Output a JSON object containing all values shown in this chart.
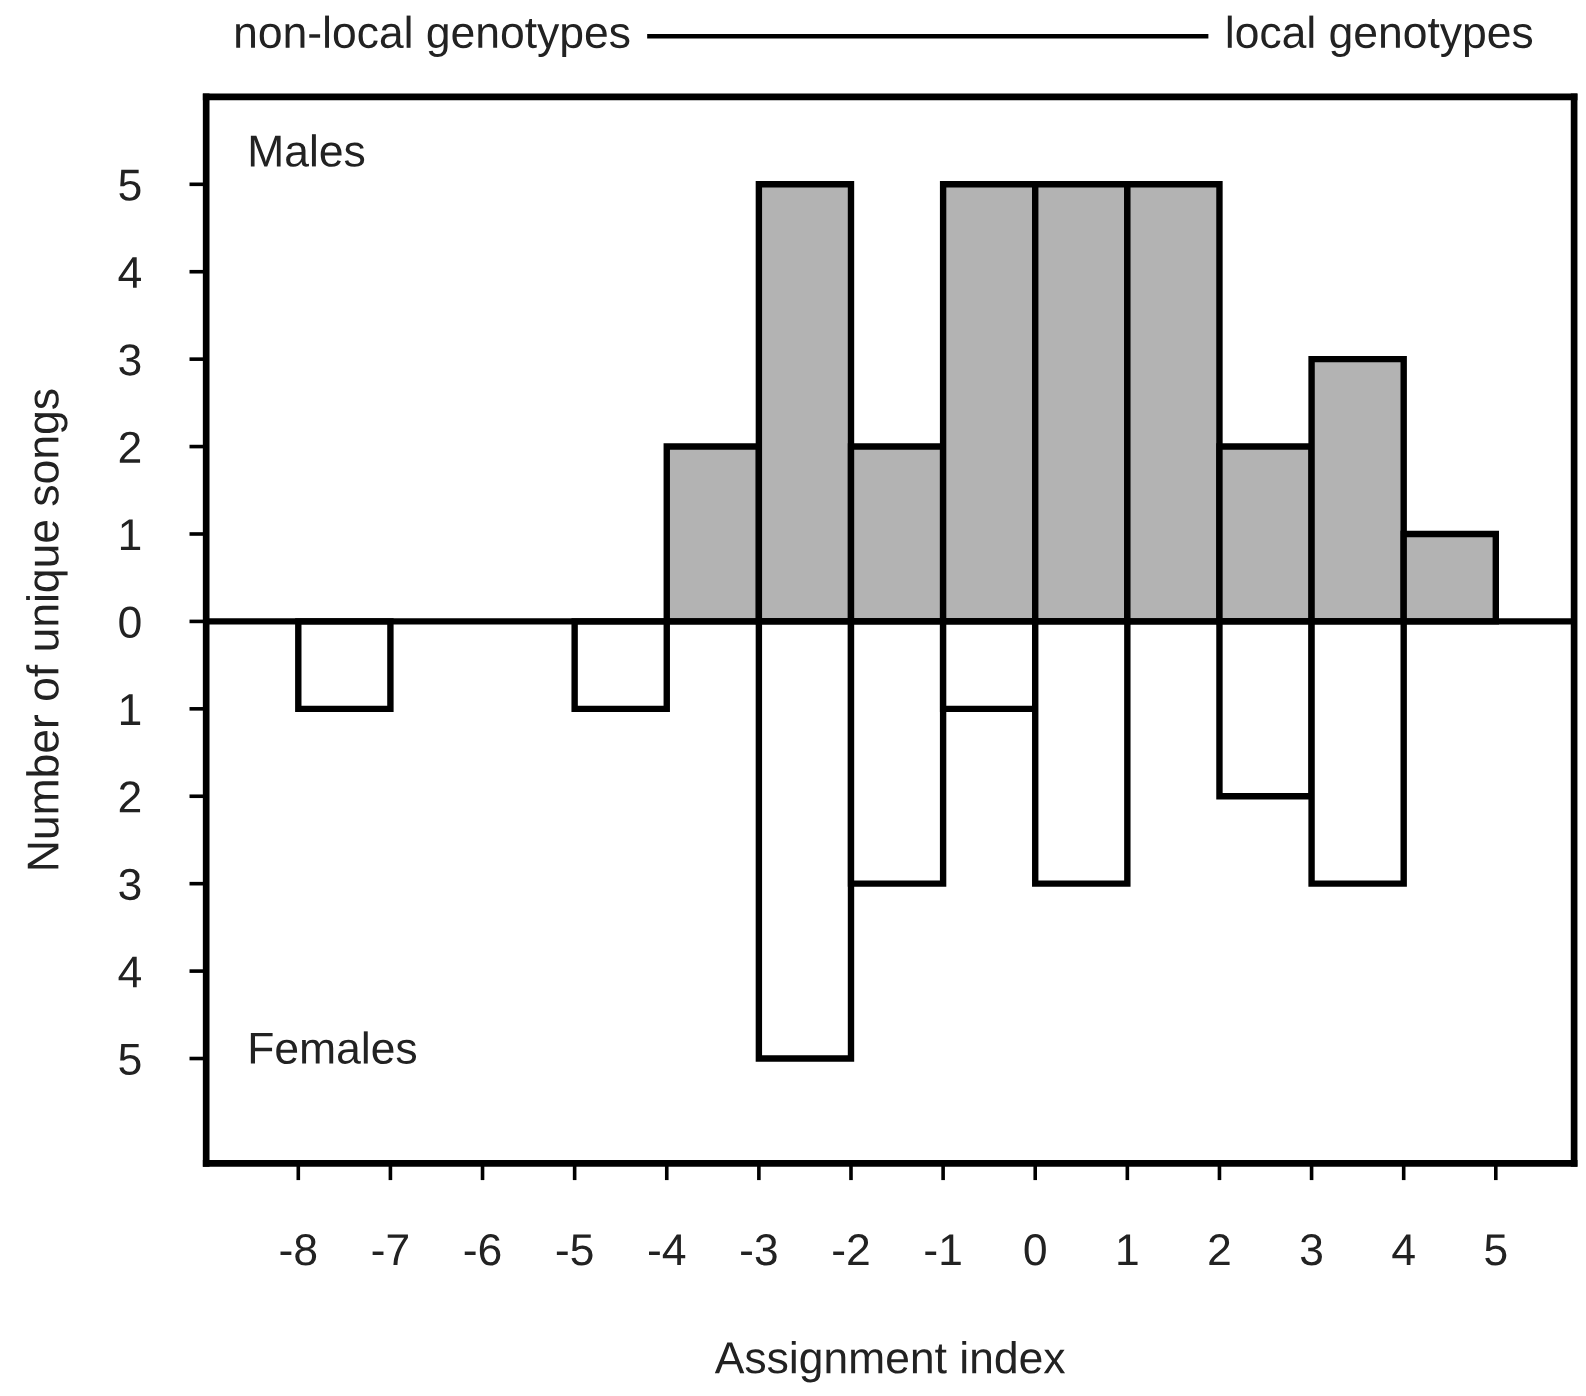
{
  "chart_data": {
    "type": "histogram",
    "xlabel": "Assignment index",
    "ylabel": "Number of unique songs",
    "annotations": [
      "non-local genotypes",
      "local genotypes",
      "Males",
      "Females"
    ],
    "bins": [
      -8,
      -7,
      -6,
      -5,
      -4,
      -3,
      -2,
      -1,
      0,
      1,
      2,
      3,
      4,
      5
    ],
    "series": [
      {
        "color": "#b3b3b3",
        "values": [
          0,
          0,
          0,
          0,
          2,
          5,
          2,
          5,
          5,
          5,
          2,
          3,
          1
        ]
      },
      {
        "color": "#ffffff",
        "values": [
          -1,
          0,
          0,
          -1,
          0,
          -5,
          -3,
          -1,
          -3,
          0,
          -2,
          -3,
          0
        ]
      }
    ],
    "xlim": [
      -9,
      5.85
    ],
    "ylim": [
      -6.2,
      6
    ],
    "xticks": [
      -8,
      -7,
      -6,
      -5,
      -4,
      -3,
      -2,
      -1,
      0,
      1,
      2,
      3,
      4,
      5
    ],
    "yticks": [
      5,
      4,
      3,
      2,
      1,
      0,
      {
        "value": -1,
        "label": "1"
      },
      {
        "value": -2,
        "label": "2"
      },
      {
        "value": -3,
        "label": "3"
      },
      {
        "value": -4,
        "label": "4"
      },
      {
        "value": -5,
        "label": "5"
      }
    ],
    "ref_lines": [
      {
        "axis": "y",
        "value": 0,
        "color": "#000000"
      }
    ]
  }
}
